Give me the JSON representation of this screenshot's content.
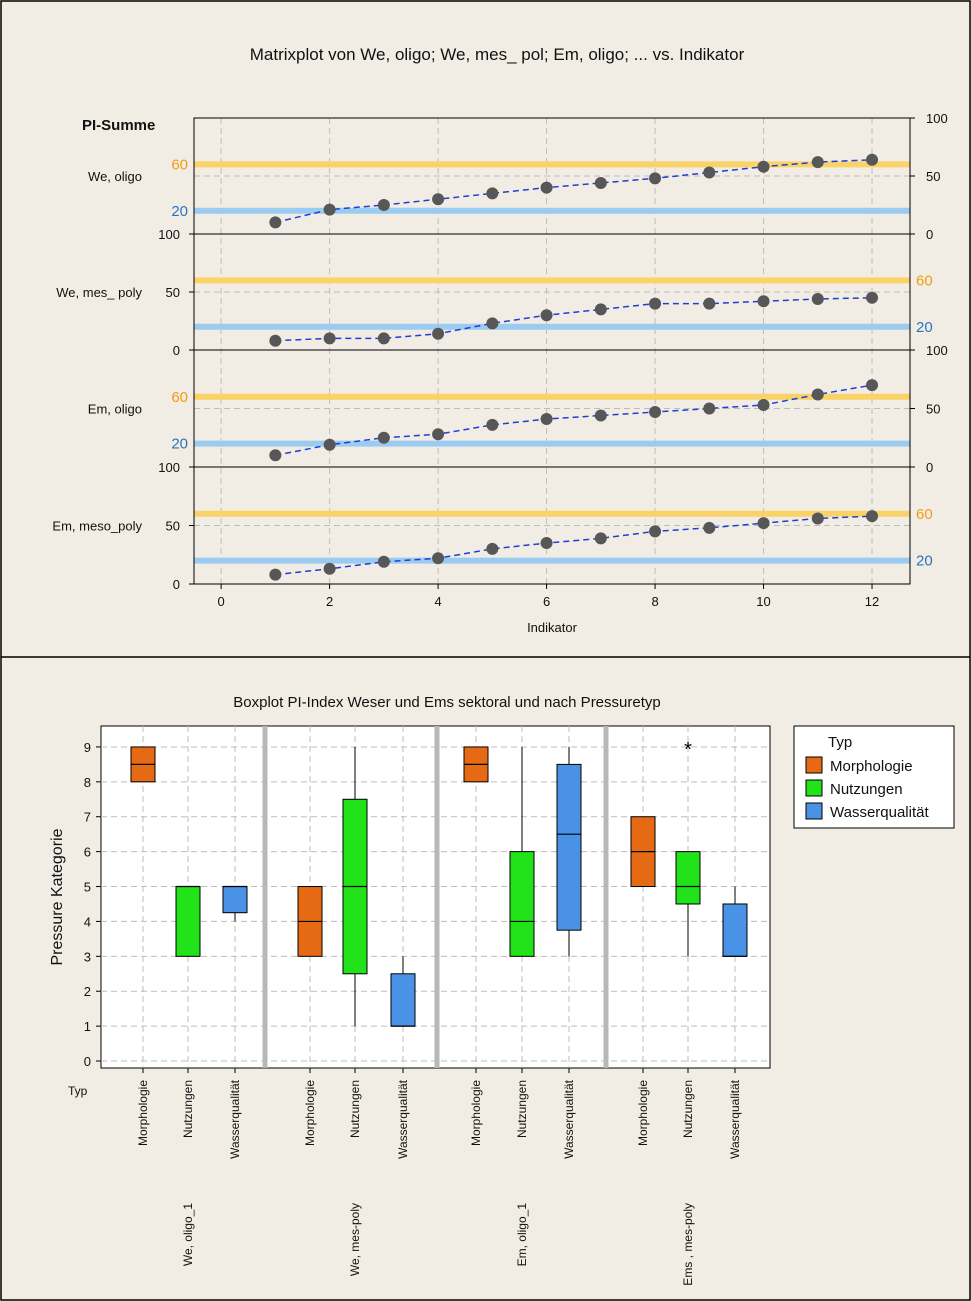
{
  "chart_data": [
    {
      "type": "scatter",
      "title": "Matrixplot von We, oligo; We, mes_ pol; Em, oligo; ... vs. Indikator",
      "corner_label": "PI-Summe",
      "xlabel": "Indikator",
      "xlim": [
        -0.5,
        12.7
      ],
      "xticks": [
        0,
        2,
        4,
        6,
        8,
        10,
        12
      ],
      "x": [
        1,
        2,
        3,
        4,
        5,
        6,
        7,
        8,
        9,
        10,
        11,
        12
      ],
      "ylim": [
        0,
        100
      ],
      "grid": true,
      "threshold_labels": [
        "60",
        "20"
      ],
      "threshold_colors": {
        "high": "#f9d268",
        "low": "#9ccbf2",
        "high_text": "#f39c12",
        "low_text": "#2b73c0"
      },
      "panels": [
        {
          "name": "We, oligo",
          "ticks": [
            0,
            50,
            100
          ],
          "tick_side": "right",
          "thresh_side": "left",
          "values": [
            10,
            21,
            25,
            30,
            35,
            40,
            44,
            48,
            53,
            58,
            62,
            64
          ]
        },
        {
          "name": "We, mes_ poly",
          "ticks": [
            0,
            50,
            100
          ],
          "tick_side": "left",
          "thresh_side": "right",
          "values": [
            8,
            10,
            10,
            14,
            23,
            30,
            35,
            40,
            40,
            42,
            44,
            45
          ]
        },
        {
          "name": "Em, oligo",
          "ticks": [
            0,
            50,
            100
          ],
          "tick_side": "right",
          "thresh_side": "left",
          "values": [
            10,
            19,
            25,
            28,
            36,
            41,
            44,
            47,
            50,
            53,
            62,
            70
          ]
        },
        {
          "name": "Em, meso_poly",
          "ticks": [
            0,
            50,
            100
          ],
          "tick_side": "left",
          "thresh_side": "right",
          "values": [
            8,
            13,
            19,
            22,
            30,
            35,
            39,
            45,
            48,
            52,
            56,
            58
          ]
        }
      ]
    },
    {
      "type": "box",
      "title": "Boxplot PI-Index Weser und Ems sektoral und nach Pressuretyp",
      "ylabel": "Pressure Kategorie",
      "ylim": [
        -0.2,
        9.6
      ],
      "yticks": [
        0,
        1,
        2,
        3,
        4,
        5,
        6,
        7,
        8,
        9
      ],
      "grid": true,
      "axis_row_label": "Typ",
      "legend": {
        "position": "right",
        "title": "Typ",
        "items": [
          {
            "name": "Morphologie",
            "color": "#e66a14"
          },
          {
            "name": "Nutzungen",
            "color": "#22e31a"
          },
          {
            "name": "Wasserqualität",
            "color": "#4a92e6"
          }
        ]
      },
      "groups": [
        {
          "name": "We, oligo_1",
          "boxes": [
            {
              "type": "Morphologie",
              "q1": 8,
              "median": 8.5,
              "q3": 9,
              "whisker_low": 8,
              "whisker_high": 9
            },
            {
              "type": "Nutzungen",
              "q1": 3,
              "median": 5,
              "q3": 5,
              "whisker_low": 3,
              "whisker_high": 5
            },
            {
              "type": "Wasserqualität",
              "q1": 4.25,
              "median": 5,
              "q3": 5,
              "whisker_low": 4,
              "whisker_high": 5
            }
          ]
        },
        {
          "name": "We, mes-poly",
          "boxes": [
            {
              "type": "Morphologie",
              "q1": 3,
              "median": 4,
              "q3": 5,
              "whisker_low": 3,
              "whisker_high": 5
            },
            {
              "type": "Nutzungen",
              "q1": 2.5,
              "median": 5,
              "q3": 7.5,
              "whisker_low": 1,
              "whisker_high": 9
            },
            {
              "type": "Wasserqualität",
              "q1": 1,
              "median": 1,
              "q3": 2.5,
              "whisker_low": 1,
              "whisker_high": 3
            }
          ]
        },
        {
          "name": "Em, oligo_1",
          "boxes": [
            {
              "type": "Morphologie",
              "q1": 8,
              "median": 8.5,
              "q3": 9,
              "whisker_low": 8,
              "whisker_high": 9
            },
            {
              "type": "Nutzungen",
              "q1": 3,
              "median": 4,
              "q3": 6,
              "whisker_low": 3,
              "whisker_high": 9
            },
            {
              "type": "Wasserqualität",
              "q1": 3.75,
              "median": 6.5,
              "q3": 8.5,
              "whisker_low": 3,
              "whisker_high": 9
            }
          ]
        },
        {
          "name": "Ems , mes-poly",
          "boxes": [
            {
              "type": "Morphologie",
              "q1": 5,
              "median": 6,
              "q3": 7,
              "whisker_low": 5,
              "whisker_high": 7
            },
            {
              "type": "Nutzungen",
              "q1": 4.5,
              "median": 5,
              "q3": 6,
              "whisker_low": 3,
              "whisker_high": 6,
              "outliers": [
                9
              ]
            },
            {
              "type": "Wasserqualität",
              "q1": 3,
              "median": 3,
              "q3": 4.5,
              "whisker_low": 3,
              "whisker_high": 5
            }
          ]
        }
      ]
    }
  ]
}
